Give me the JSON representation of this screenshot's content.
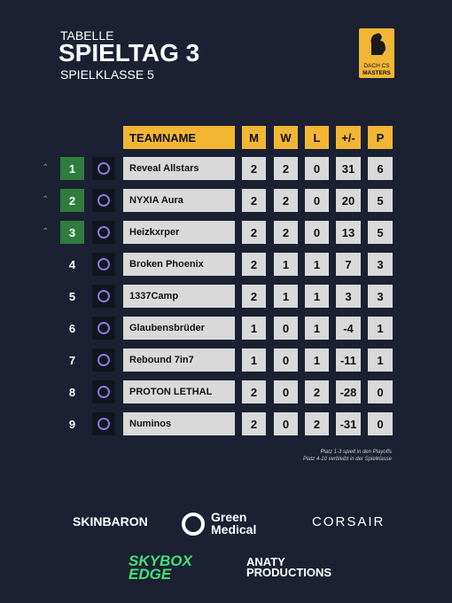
{
  "header": {
    "kicker": "TABELLE",
    "title": "SPIELTAG 3",
    "subtitle": "SPIELKLASSE 5"
  },
  "logo": {
    "line1": "DACH CS",
    "line2": "MASTERS"
  },
  "table": {
    "columns": [
      "TEAMNAME",
      "M",
      "W",
      "L",
      "+/-",
      "P"
    ],
    "rows": [
      {
        "rank": 1,
        "team": "Reveal Allstars",
        "m": 2,
        "w": 2,
        "l": 0,
        "diff": 31,
        "p": 6
      },
      {
        "rank": 2,
        "team": "NYXIA Aura",
        "m": 2,
        "w": 2,
        "l": 0,
        "diff": 20,
        "p": 5
      },
      {
        "rank": 3,
        "team": "Heizkxrper",
        "m": 2,
        "w": 2,
        "l": 0,
        "diff": 13,
        "p": 5
      },
      {
        "rank": 4,
        "team": "Broken Phoenix",
        "m": 2,
        "w": 1,
        "l": 1,
        "diff": 7,
        "p": 3
      },
      {
        "rank": 5,
        "team": "1337Camp",
        "m": 2,
        "w": 1,
        "l": 1,
        "diff": 3,
        "p": 3
      },
      {
        "rank": 6,
        "team": "Glaubensbrüder",
        "m": 1,
        "w": 0,
        "l": 1,
        "diff": -4,
        "p": 1
      },
      {
        "rank": 7,
        "team": "Rebound 7in7",
        "m": 1,
        "w": 0,
        "l": 1,
        "diff": -11,
        "p": 1
      },
      {
        "rank": 8,
        "team": "PROTON LETHAL",
        "m": 2,
        "w": 0,
        "l": 2,
        "diff": -28,
        "p": 0
      },
      {
        "rank": 9,
        "team": "Numinos",
        "m": 2,
        "w": 0,
        "l": 2,
        "diff": -31,
        "p": 0
      }
    ]
  },
  "notes": [
    "Platz 1-3 spielt in den Playoffs",
    "Platz 4-10 verbleibt in der Spielklasse"
  ],
  "sponsors": [
    "SKINBARON",
    "Green Medical",
    "CORSAIR",
    "SKYBOX EDGE",
    "ANATY PRODUCTIONS"
  ]
}
